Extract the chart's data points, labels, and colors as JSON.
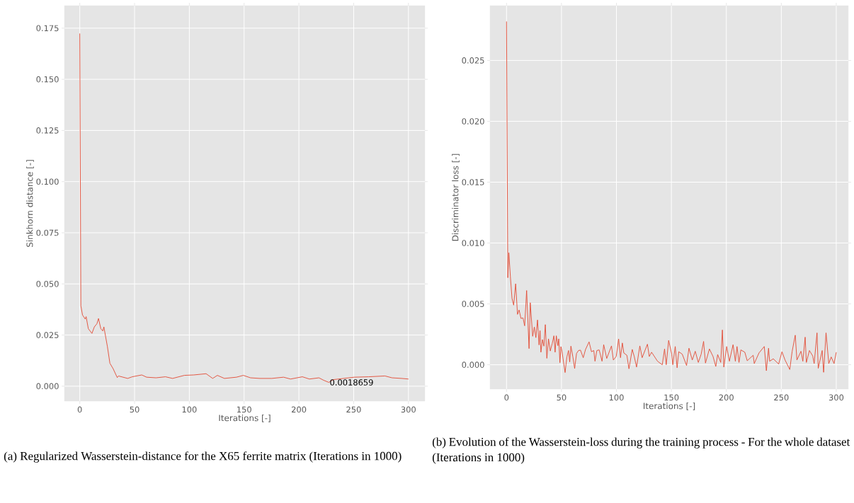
{
  "chart_data": [
    {
      "type": "line",
      "title": "(a) Regularized Wasserstein-distance for the X65 ferrite matrix (Iterations in 1000)",
      "xlabel": "Iterations [-]",
      "ylabel": "Sinkhorn distance [-]",
      "color": "#e24a33",
      "grid": true,
      "x": [
        0,
        1,
        2.5,
        5,
        5.8,
        7.8,
        11.1,
        13.3,
        15.6,
        17.1,
        19.2,
        21,
        22,
        25.2,
        27.5,
        30.4,
        34.2,
        35.3,
        43.7,
        47.9,
        56.6,
        61,
        69.6,
        78.2,
        84.7,
        95.5,
        104,
        115.3,
        121.3,
        125.6,
        132,
        143,
        149.3,
        155.8,
        164.4,
        175.2,
        186,
        192.4,
        203.2,
        209.6,
        218.3,
        222.6,
        227.3,
        231.2,
        250.6,
        263.5,
        278.6,
        285,
        293.7,
        300
      ],
      "values": [
        0.1724,
        0.0393,
        0.0348,
        0.0328,
        0.034,
        0.0281,
        0.0258,
        0.029,
        0.0305,
        0.0331,
        0.0281,
        0.027,
        0.029,
        0.0194,
        0.0112,
        0.0086,
        0.0042,
        0.005,
        0.0038,
        0.0046,
        0.0055,
        0.0044,
        0.0041,
        0.0046,
        0.0038,
        0.0053,
        0.0055,
        0.0061,
        0.0038,
        0.0053,
        0.0038,
        0.0044,
        0.0053,
        0.0041,
        0.0038,
        0.0038,
        0.0044,
        0.0035,
        0.0046,
        0.0035,
        0.0041,
        0.0029,
        0.0018659,
        0.0032,
        0.0044,
        0.0046,
        0.005,
        0.0041,
        0.0038,
        0.0035
      ],
      "xlim": [
        -14,
        315
      ],
      "ylim": [
        -0.0073,
        0.186
      ],
      "xticks": [
        0,
        50,
        100,
        150,
        200,
        250,
        300
      ],
      "yticks": [
        {
          "value": 0,
          "label": "0.000"
        },
        {
          "value": 0.025,
          "label": "0.025"
        },
        {
          "value": 0.05,
          "label": "0.050"
        },
        {
          "value": 0.075,
          "label": "0.075"
        },
        {
          "value": 0.1,
          "label": "0.100"
        },
        {
          "value": 0.125,
          "label": "0.125"
        },
        {
          "value": 0.15,
          "label": "0.150"
        },
        {
          "value": 0.175,
          "label": "0.175"
        }
      ],
      "annotations": [
        {
          "text": "0.0018659",
          "x": 227.3,
          "y": 0.0018659
        }
      ]
    },
    {
      "type": "line",
      "title": "(b) Evolution of the Wasserstein-loss during the training process - For the whole dataset (Iterations in 1000)",
      "xlabel": "Iterations [-]",
      "ylabel": "Discriminator loss [-]",
      "color": "#e24a33",
      "grid": true,
      "x": [
        0,
        1.2,
        2.1,
        3.5,
        5,
        6.5,
        8.3,
        10,
        11.4,
        13.2,
        15,
        16.5,
        18.3,
        20.5,
        21.6,
        23.8,
        25.3,
        26.7,
        28.2,
        29.6,
        30.5,
        31.3,
        32.7,
        34,
        35.3,
        36.7,
        38.2,
        39.8,
        41.6,
        43.1,
        44.2,
        45.3,
        46.7,
        47.5,
        48.6,
        49.5,
        50.4,
        53.3,
        54.9,
        56.4,
        57.5,
        58.6,
        60.4,
        62,
        63.7,
        65.5,
        67.3,
        69.8,
        71.9,
        75.1,
        77.3,
        79.4,
        80.5,
        82.2,
        84.3,
        86.9,
        88.4,
        91.2,
        95.5,
        97.2,
        99.8,
        102,
        103.7,
        105.4,
        106.7,
        109.5,
        111.4,
        114.4,
        116.2,
        118.3,
        121.3,
        123.4,
        128.2,
        129.9,
        132,
        137.4,
        141.7,
        143.8,
        145.3,
        147.5,
        150.3,
        151.3,
        153.5,
        155.2,
        156.7,
        159.9,
        163.8,
        166,
        169,
        171.7,
        174.5,
        177.1,
        179.3,
        181,
        184.6,
        187.9,
        190.4,
        192.1,
        194.9,
        196.4,
        197.7,
        200.3,
        202.8,
        206.1,
        208.2,
        209.7,
        211.5,
        213.2,
        216.8,
        219,
        224.4,
        225.4,
        229.7,
        234.5,
        236.4,
        238.4,
        239.4,
        242.7,
        247.6,
        250.6,
        253.4,
        257.7,
        259.9,
        262.7,
        264.2,
        267.9,
        269.6,
        271.7,
        272.8,
        275.6,
        278.6,
        279.9,
        282.5,
        283.6,
        287.2,
        288.5,
        290.7,
        293.2,
        295.4,
        298,
        300
      ],
      "values": [
        0.0282,
        0.00715,
        0.0092,
        0.00725,
        0.00545,
        0.0049,
        0.00665,
        0.00414,
        0.0045,
        0.0038,
        0.00385,
        0.0032,
        0.0061,
        0.00133,
        0.0051,
        0.00234,
        0.0031,
        0.00223,
        0.00368,
        0.00163,
        0.0028,
        0.00103,
        0.00207,
        0.00153,
        0.0033,
        0.00053,
        0.00213,
        0.00113,
        0.00174,
        0.00238,
        0.00103,
        0.00238,
        0.00157,
        0.00213,
        0.00017,
        0.00149,
        0.00113,
        -0.00064,
        0.00063,
        0.00117,
        0.00023,
        0.00153,
        0.00063,
        -0.00031,
        0.00093,
        0.00117,
        0.0012,
        0.00058,
        0.00126,
        0.00188,
        0.00107,
        0.00117,
        0.00029,
        0.00117,
        0.00122,
        0.00029,
        0.00165,
        0.00052,
        0.00155,
        0.00039,
        0.00068,
        0.00212,
        0.00058,
        0.00179,
        0.00097,
        0.00078,
        -0.00033,
        0.00126,
        0.00068,
        -0.00019,
        0.00155,
        0.00058,
        0.00169,
        0.00068,
        0.00103,
        0.00029,
        0.0,
        0.0013,
        0.0,
        0.002,
        0.00087,
        0.0,
        0.0015,
        -0.00025,
        0.00107,
        0.00087,
        -6e-05,
        0.00136,
        0.00039,
        0.00111,
        0.00019,
        0.00087,
        0.00192,
        0.00014,
        0.0013,
        0.00068,
        -0.00014,
        0.00084,
        0.00019,
        0.00286,
        -0.00019,
        0.0015,
        0.00029,
        0.00165,
        0.00029,
        0.0015,
        0.00019,
        0.00122,
        0.00103,
        0.00033,
        0.00078,
        0.0001,
        0.00097,
        0.0015,
        -0.00049,
        0.00136,
        0.00029,
        0.00049,
        6e-05,
        0.00107,
        0.00039,
        -0.00039,
        0.00111,
        0.00243,
        0.00039,
        0.00111,
        0.00029,
        0.00227,
        0.00019,
        0.00117,
        0.00072,
        0.0001,
        0.00262,
        -0.00029,
        0.00117,
        -0.00062,
        0.00262,
        0.0001,
        0.00064,
        0.0001,
        0.00103
      ],
      "xlim": [
        -15,
        311
      ],
      "ylim": [
        -0.002,
        0.0295
      ],
      "xticks": [
        0,
        50,
        100,
        150,
        200,
        250,
        300
      ],
      "yticks": [
        {
          "value": 0,
          "label": "0.000"
        },
        {
          "value": 0.005,
          "label": "0.005"
        },
        {
          "value": 0.01,
          "label": "0.010"
        },
        {
          "value": 0.015,
          "label": "0.015"
        },
        {
          "value": 0.02,
          "label": "0.020"
        },
        {
          "value": 0.025,
          "label": "0.025"
        }
      ]
    }
  ]
}
